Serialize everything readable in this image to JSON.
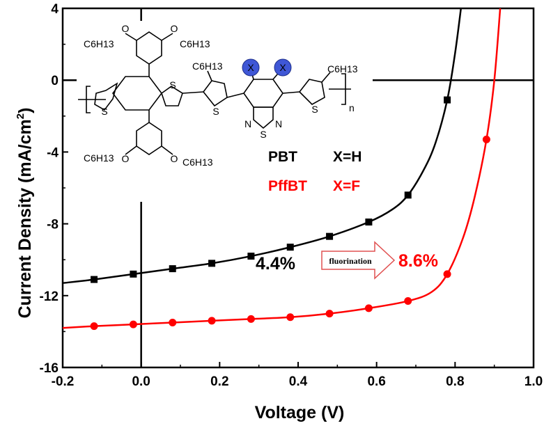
{
  "chart_data": {
    "type": "line",
    "xlabel": "Voltage (V)",
    "ylabel": "Current Density (mA/cm",
    "ylabel_sup": "2",
    "ylabel_close": ")",
    "xlim": [
      -0.2,
      1.0
    ],
    "ylim": [
      -16,
      4
    ],
    "xticks": [
      -0.2,
      0.0,
      0.2,
      0.4,
      0.6,
      0.8,
      1.0
    ],
    "xtick_labels": [
      "-0.2",
      "0.0",
      "0.2",
      "0.4",
      "0.6",
      "0.8",
      "1.0"
    ],
    "yticks": [
      -16,
      -12,
      -8,
      -4,
      0,
      4
    ],
    "ytick_labels": [
      "-16",
      "-12",
      "-8",
      "-4",
      "0",
      "4"
    ],
    "series": [
      {
        "name": "PBT",
        "color": "#000000",
        "marker": "square",
        "x": [
          -0.12,
          -0.02,
          0.08,
          0.18,
          0.28,
          0.38,
          0.48,
          0.58,
          0.68,
          0.78
        ],
        "y": [
          -11.1,
          -10.8,
          -10.5,
          -10.2,
          -9.8,
          -9.3,
          -8.7,
          -7.9,
          -6.4,
          -1.1
        ],
        "curve_x": [
          -0.2,
          -0.12,
          -0.02,
          0.08,
          0.18,
          0.28,
          0.38,
          0.48,
          0.58,
          0.64,
          0.68,
          0.72,
          0.75,
          0.78,
          0.8,
          0.815
        ],
        "curve_y": [
          -11.3,
          -11.1,
          -10.8,
          -10.5,
          -10.2,
          -9.8,
          -9.3,
          -8.7,
          -7.9,
          -7.2,
          -6.4,
          -5.0,
          -3.5,
          -1.1,
          1.5,
          4.0
        ]
      },
      {
        "name": "PffBT",
        "color": "#ff0000",
        "marker": "circle",
        "x": [
          -0.12,
          -0.02,
          0.08,
          0.18,
          0.28,
          0.38,
          0.48,
          0.58,
          0.68,
          0.78,
          0.88
        ],
        "y": [
          -13.7,
          -13.6,
          -13.5,
          -13.4,
          -13.3,
          -13.2,
          -13.0,
          -12.7,
          -12.3,
          -10.8,
          -3.3
        ],
        "curve_x": [
          -0.2,
          -0.12,
          -0.02,
          0.08,
          0.18,
          0.28,
          0.38,
          0.48,
          0.58,
          0.68,
          0.74,
          0.78,
          0.82,
          0.85,
          0.88,
          0.9,
          0.915
        ],
        "curve_y": [
          -13.8,
          -13.7,
          -13.6,
          -13.5,
          -13.4,
          -13.3,
          -13.2,
          -13.0,
          -12.7,
          -12.3,
          -11.8,
          -10.8,
          -8.8,
          -6.5,
          -3.3,
          0.0,
          4.0
        ]
      }
    ],
    "annotations": {
      "legend_pbt_name": "PBT",
      "legend_pbt_x": "X=H",
      "legend_pffbt_name": "PffBT",
      "legend_pffbt_x": "X=F",
      "pce_before": "4.4%",
      "arrow_label": "fluorination",
      "pce_after": "8.6%"
    },
    "grid": false,
    "legend_placement": "middle-right of inset"
  },
  "structure": {
    "sidechain": "C6H13",
    "alkoxy_o": "O",
    "sulfur": "S",
    "nitrogen": "N",
    "substituent": "X",
    "repeat": "n"
  },
  "colors": {
    "pbt": "#000000",
    "pffbt": "#ff0000",
    "x_ball": "#3f57d6"
  }
}
